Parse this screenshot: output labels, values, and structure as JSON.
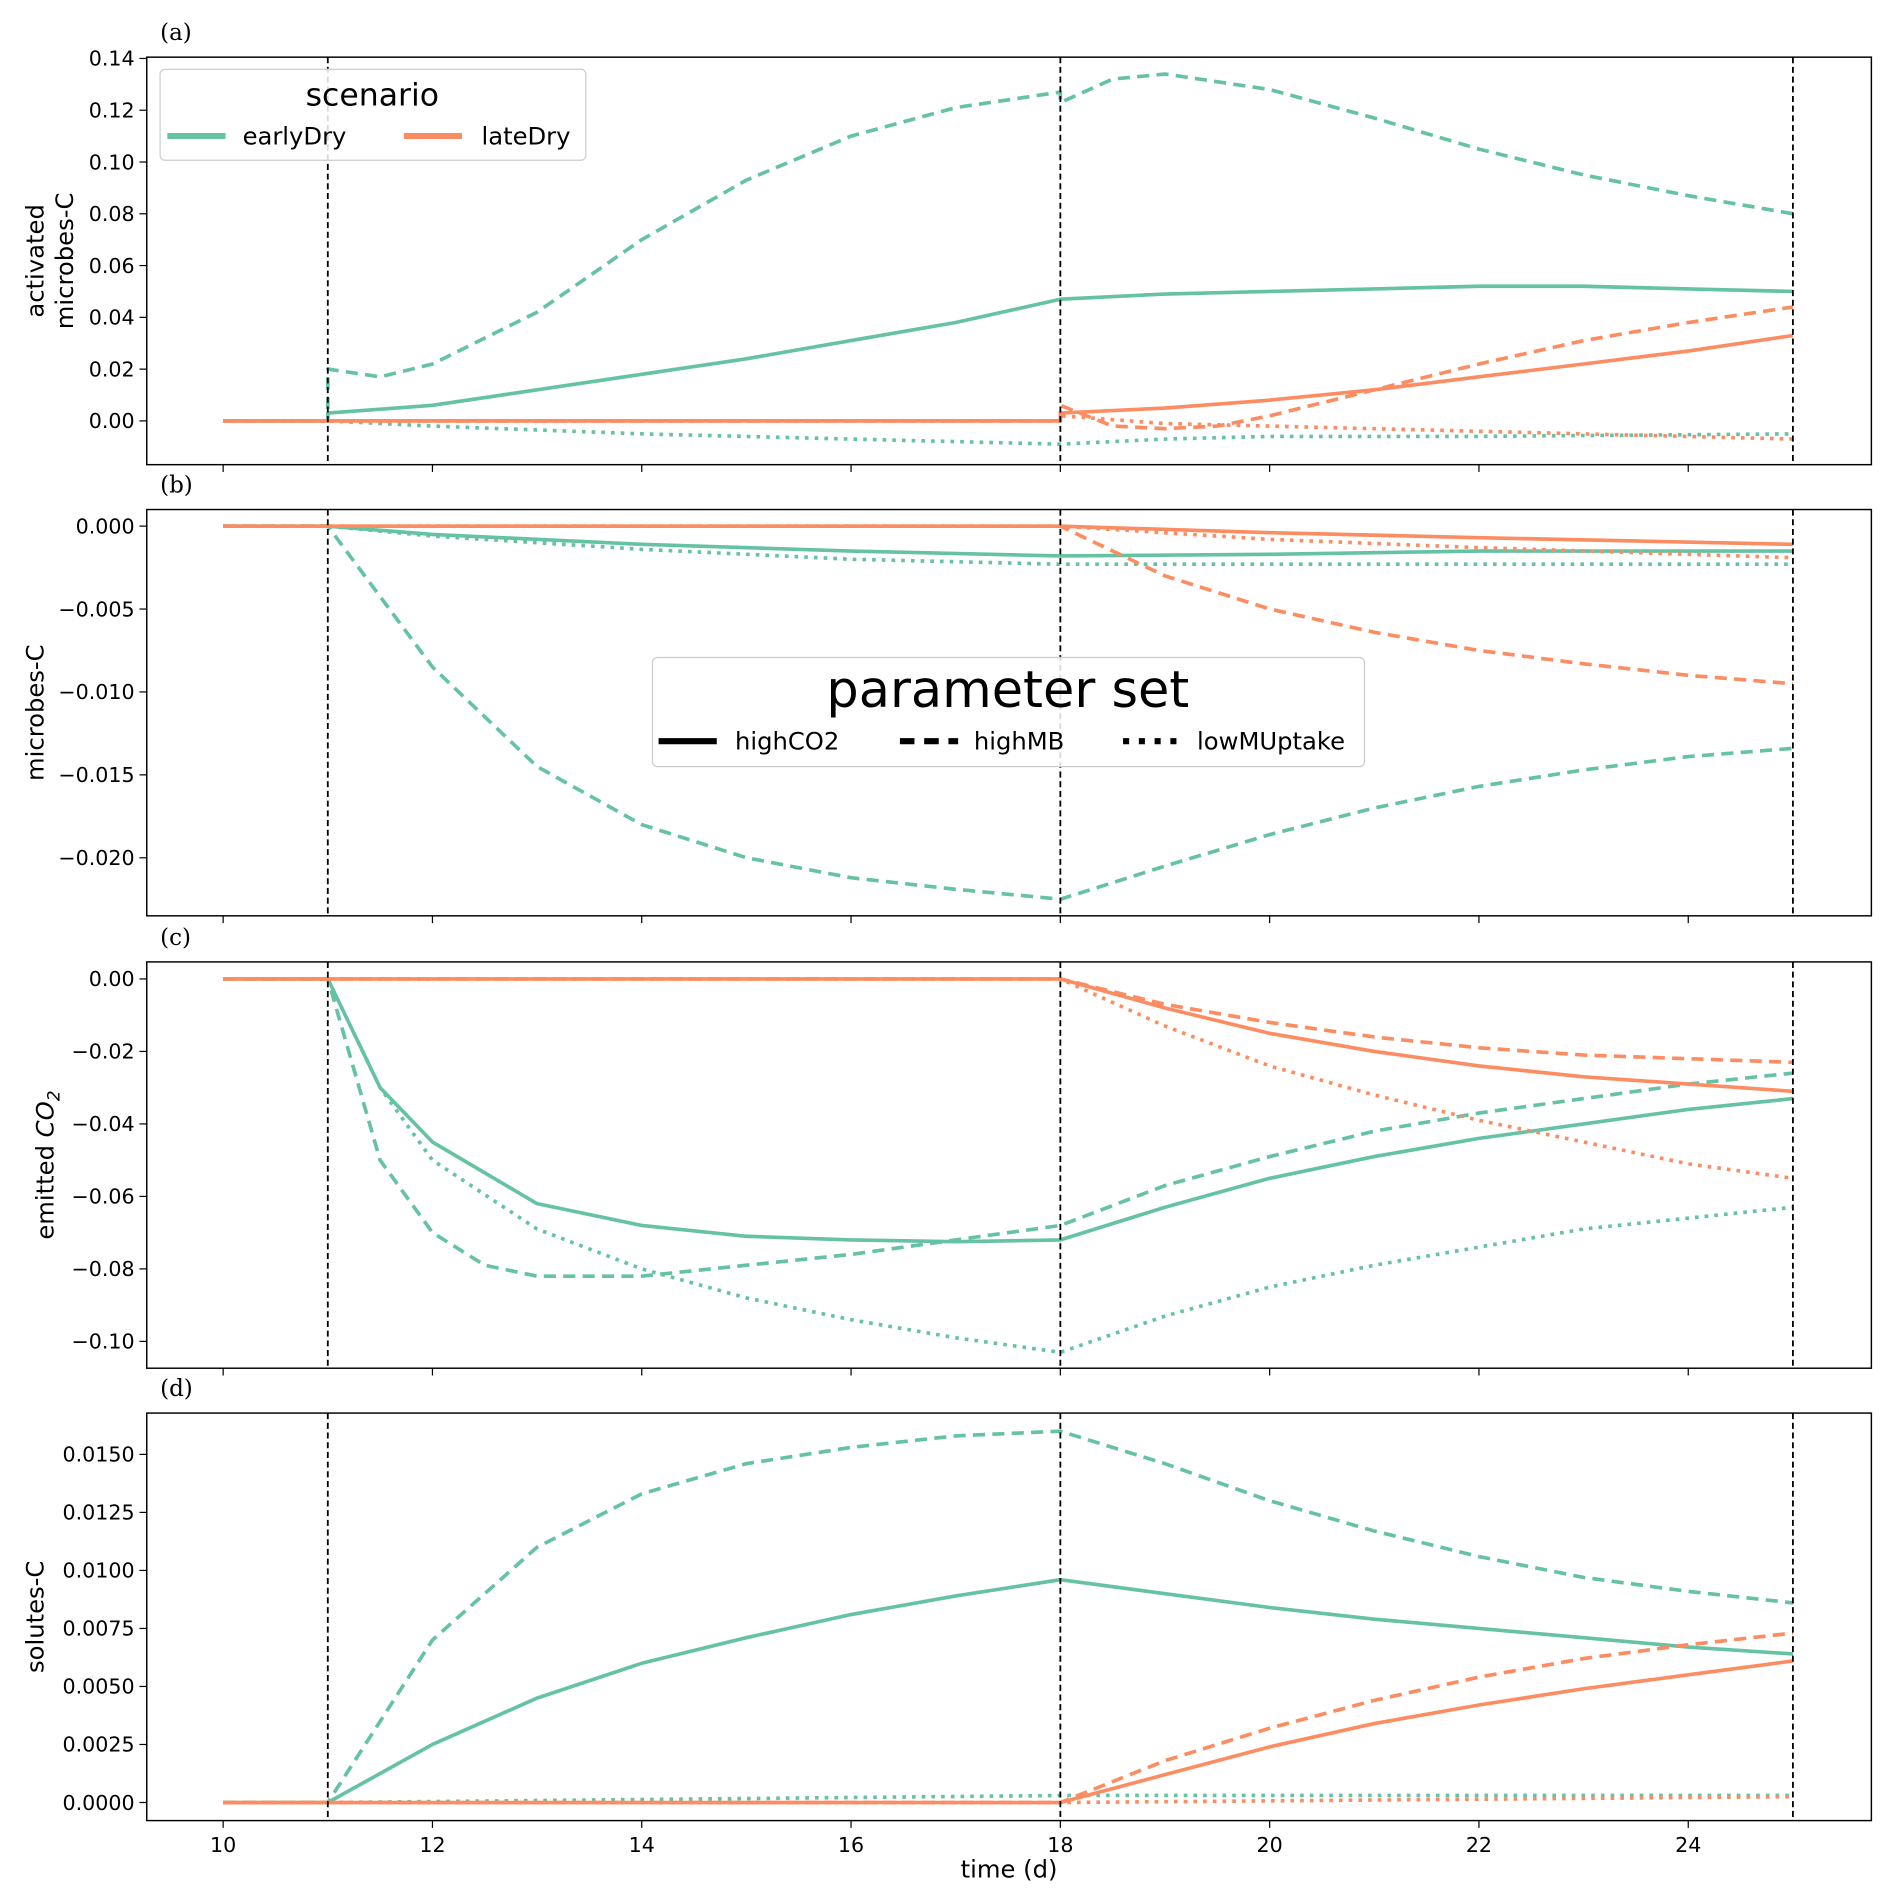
{
  "chart_data": [
    {
      "type": "line",
      "panel": "(a)",
      "ylabel": [
        "activated",
        "microbes-C"
      ],
      "ylim": [
        -0.0169,
        0.1405
      ],
      "yticks": [
        0,
        0.02,
        0.04,
        0.06,
        0.08,
        0.1,
        0.12,
        0.14
      ],
      "ytick_labels": [
        "0.00",
        "0.02",
        "0.04",
        "0.06",
        "0.08",
        "0.10",
        "0.12",
        "0.14"
      ],
      "series": [
        {
          "scenario": "earlyDry",
          "param": "highCO2",
          "x": [
            10,
            11,
            11,
            12,
            13,
            14,
            15,
            16,
            17,
            18,
            19,
            20,
            21,
            22,
            23,
            24,
            25
          ],
          "y": [
            0,
            0,
            0.003,
            0.006,
            0.012,
            0.018,
            0.024,
            0.031,
            0.038,
            0.047,
            0.049,
            0.05,
            0.051,
            0.052,
            0.052,
            0.051,
            0.05
          ]
        },
        {
          "scenario": "earlyDry",
          "param": "highMB",
          "x": [
            10,
            11,
            11,
            11.5,
            12,
            13,
            14,
            15,
            16,
            17,
            18,
            18,
            18.5,
            19,
            20,
            21,
            22,
            23,
            24,
            25
          ],
          "y": [
            0,
            0,
            0.02,
            0.017,
            0.022,
            0.042,
            0.07,
            0.093,
            0.11,
            0.121,
            0.127,
            0.123,
            0.132,
            0.134,
            0.128,
            0.117,
            0.105,
            0.095,
            0.087,
            0.08
          ]
        },
        {
          "scenario": "earlyDry",
          "param": "lowMUptake",
          "x": [
            10,
            11,
            12,
            14,
            16,
            18,
            19,
            20,
            22,
            25
          ],
          "y": [
            0,
            0,
            -0.002,
            -0.005,
            -0.007,
            -0.009,
            -0.007,
            -0.006,
            -0.006,
            -0.005
          ]
        },
        {
          "scenario": "lateDry",
          "param": "highCO2",
          "x": [
            10,
            18,
            18,
            19,
            20,
            21,
            22,
            23,
            24,
            25
          ],
          "y": [
            0,
            0,
            0.003,
            0.005,
            0.008,
            0.012,
            0.017,
            0.022,
            0.027,
            0.033
          ]
        },
        {
          "scenario": "lateDry",
          "param": "highMB",
          "x": [
            10,
            18,
            18,
            18.5,
            19,
            19.5,
            20,
            21,
            22,
            23,
            24,
            25
          ],
          "y": [
            0,
            0,
            0.006,
            -0.002,
            -0.003,
            -0.002,
            0.002,
            0.012,
            0.022,
            0.031,
            0.038,
            0.044
          ]
        },
        {
          "scenario": "lateDry",
          "param": "lowMUptake",
          "x": [
            10,
            18,
            18,
            19,
            20,
            22,
            25
          ],
          "y": [
            0,
            0,
            0.002,
            -0.001,
            -0.002,
            -0.004,
            -0.007
          ]
        }
      ]
    },
    {
      "type": "line",
      "panel": "(b)",
      "ylabel": [
        "microbes-C"
      ],
      "ylim": [
        -0.0235,
        0.001
      ],
      "yticks": [
        0,
        -0.005,
        -0.01,
        -0.015,
        -0.02
      ],
      "ytick_labels": [
        "0.000",
        "−0.005",
        "−0.010",
        "−0.015",
        "−0.020"
      ],
      "series": [
        {
          "scenario": "earlyDry",
          "param": "highCO2",
          "x": [
            10,
            11,
            12,
            14,
            16,
            18,
            20,
            22,
            25
          ],
          "y": [
            0,
            0,
            -0.0005,
            -0.0011,
            -0.0015,
            -0.0018,
            -0.0017,
            -0.0015,
            -0.0015
          ]
        },
        {
          "scenario": "earlyDry",
          "param": "highMB",
          "x": [
            10,
            11,
            12,
            13,
            14,
            15,
            16,
            17,
            18,
            19,
            20,
            21,
            22,
            23,
            24,
            25
          ],
          "y": [
            0,
            0,
            -0.0085,
            -0.0145,
            -0.018,
            -0.02,
            -0.0212,
            -0.0219,
            -0.0225,
            -0.0205,
            -0.0186,
            -0.017,
            -0.0157,
            -0.0147,
            -0.0139,
            -0.0134
          ]
        },
        {
          "scenario": "earlyDry",
          "param": "lowMUptake",
          "x": [
            10,
            11,
            12,
            14,
            16,
            18,
            25
          ],
          "y": [
            0,
            0,
            -0.0006,
            -0.0014,
            -0.002,
            -0.0023,
            -0.0023
          ]
        },
        {
          "scenario": "lateDry",
          "param": "highCO2",
          "x": [
            10,
            18,
            20,
            22,
            25
          ],
          "y": [
            0,
            0,
            -0.0004,
            -0.0007,
            -0.0011
          ]
        },
        {
          "scenario": "lateDry",
          "param": "highMB",
          "x": [
            10,
            18,
            19,
            20,
            21,
            22,
            23,
            24,
            25
          ],
          "y": [
            0,
            0,
            -0.003,
            -0.005,
            -0.0064,
            -0.0075,
            -0.0083,
            -0.009,
            -0.0095
          ]
        },
        {
          "scenario": "lateDry",
          "param": "lowMUptake",
          "x": [
            10,
            18,
            20,
            22,
            25
          ],
          "y": [
            0,
            0,
            -0.0008,
            -0.0013,
            -0.0019
          ]
        }
      ]
    },
    {
      "type": "line",
      "panel": "(c)",
      "ylabel": [
        "emitted CO2"
      ],
      "ylim": [
        -0.1074,
        0.0047
      ],
      "yticks": [
        0,
        -0.02,
        -0.04,
        -0.06,
        -0.08,
        -0.1
      ],
      "ytick_labels": [
        "0.00",
        "−0.02",
        "−0.04",
        "−0.06",
        "−0.08",
        "−0.10"
      ],
      "series": [
        {
          "scenario": "earlyDry",
          "param": "highCO2",
          "x": [
            10,
            11,
            11.5,
            12,
            13,
            14,
            15,
            16,
            17,
            18,
            19,
            20,
            21,
            22,
            23,
            24,
            25
          ],
          "y": [
            0,
            0,
            -0.03,
            -0.045,
            -0.062,
            -0.068,
            -0.071,
            -0.072,
            -0.0725,
            -0.072,
            -0.063,
            -0.055,
            -0.049,
            -0.044,
            -0.04,
            -0.036,
            -0.033
          ]
        },
        {
          "scenario": "earlyDry",
          "param": "highMB",
          "x": [
            10,
            11,
            11.5,
            12,
            12.5,
            13,
            14,
            15,
            16,
            17,
            18,
            19,
            20,
            21,
            22,
            23,
            24,
            25
          ],
          "y": [
            0,
            0,
            -0.05,
            -0.07,
            -0.079,
            -0.082,
            -0.082,
            -0.079,
            -0.076,
            -0.072,
            -0.068,
            -0.057,
            -0.049,
            -0.042,
            -0.037,
            -0.033,
            -0.029,
            -0.026
          ]
        },
        {
          "scenario": "earlyDry",
          "param": "lowMUptake",
          "x": [
            10,
            11,
            11.5,
            12,
            13,
            14,
            15,
            16,
            17,
            18,
            19,
            20,
            21,
            22,
            23,
            24,
            25
          ],
          "y": [
            0,
            0,
            -0.03,
            -0.05,
            -0.069,
            -0.08,
            -0.088,
            -0.094,
            -0.099,
            -0.103,
            -0.093,
            -0.085,
            -0.079,
            -0.074,
            -0.069,
            -0.066,
            -0.063
          ]
        },
        {
          "scenario": "lateDry",
          "param": "highCO2",
          "x": [
            10,
            18,
            19,
            20,
            21,
            22,
            23,
            24,
            25
          ],
          "y": [
            0,
            0,
            -0.008,
            -0.015,
            -0.02,
            -0.024,
            -0.027,
            -0.029,
            -0.031
          ]
        },
        {
          "scenario": "lateDry",
          "param": "highMB",
          "x": [
            10,
            18,
            19,
            20,
            21,
            22,
            23,
            24,
            25
          ],
          "y": [
            0,
            0,
            -0.007,
            -0.012,
            -0.016,
            -0.019,
            -0.021,
            -0.022,
            -0.023
          ]
        },
        {
          "scenario": "lateDry",
          "param": "lowMUptake",
          "x": [
            10,
            18,
            19,
            20,
            21,
            22,
            23,
            24,
            25
          ],
          "y": [
            0,
            0,
            -0.013,
            -0.024,
            -0.032,
            -0.039,
            -0.045,
            -0.051,
            -0.055
          ]
        }
      ]
    },
    {
      "type": "line",
      "panel": "(d)",
      "ylabel": [
        "solutes-C"
      ],
      "ylim": [
        -0.00078,
        0.01678
      ],
      "yticks": [
        0,
        0.0025,
        0.005,
        0.0075,
        0.01,
        0.0125,
        0.015
      ],
      "ytick_labels": [
        "0.0000",
        "0.0025",
        "0.0050",
        "0.0075",
        "0.0100",
        "0.0125",
        "0.0150"
      ],
      "series": [
        {
          "scenario": "earlyDry",
          "param": "highCO2",
          "x": [
            10,
            11,
            12,
            13,
            14,
            15,
            16,
            17,
            18,
            19,
            20,
            21,
            22,
            23,
            24,
            25
          ],
          "y": [
            0,
            0,
            0.0025,
            0.0045,
            0.006,
            0.0071,
            0.0081,
            0.0089,
            0.0096,
            0.009,
            0.0084,
            0.0079,
            0.0075,
            0.0071,
            0.0067,
            0.0064
          ]
        },
        {
          "scenario": "earlyDry",
          "param": "highMB",
          "x": [
            10,
            11,
            12,
            13,
            14,
            15,
            16,
            17,
            18,
            19,
            20,
            21,
            22,
            23,
            24,
            25
          ],
          "y": [
            0,
            0,
            0.007,
            0.011,
            0.0133,
            0.0146,
            0.0153,
            0.0158,
            0.016,
            0.0146,
            0.013,
            0.0117,
            0.0106,
            0.0097,
            0.0091,
            0.0086
          ]
        },
        {
          "scenario": "earlyDry",
          "param": "lowMUptake",
          "x": [
            10,
            11,
            18,
            25
          ],
          "y": [
            0,
            0,
            0.0003,
            0.0003
          ]
        },
        {
          "scenario": "lateDry",
          "param": "highCO2",
          "x": [
            10,
            18,
            19,
            20,
            21,
            22,
            23,
            24,
            25
          ],
          "y": [
            0,
            0,
            0.0012,
            0.0024,
            0.0034,
            0.0042,
            0.0049,
            0.0055,
            0.0061
          ]
        },
        {
          "scenario": "lateDry",
          "param": "highMB",
          "x": [
            10,
            18,
            19,
            20,
            21,
            22,
            23,
            24,
            25
          ],
          "y": [
            0,
            0,
            0.0018,
            0.0032,
            0.0044,
            0.0054,
            0.0062,
            0.0068,
            0.0073
          ]
        },
        {
          "scenario": "lateDry",
          "param": "lowMUptake",
          "x": [
            10,
            18,
            25
          ],
          "y": [
            0,
            0,
            0.00025
          ]
        }
      ]
    }
  ],
  "shared": {
    "xlabel": "time (d)",
    "xlim": [
      9.27,
      25.75
    ],
    "xticks": [
      10,
      12,
      14,
      16,
      18,
      20,
      22,
      24
    ],
    "vlines": [
      11,
      18,
      25
    ],
    "colors": {
      "earlyDry": "#66c2a5",
      "lateDry": "#fc8d62"
    },
    "dashes": {
      "highCO2": "",
      "highMB": "10,6",
      "lowMUptake": "3,5"
    }
  },
  "legend_scenario": {
    "title": "scenario",
    "entries": [
      "earlyDry",
      "lateDry"
    ],
    "placement": "top-left of panel (a)"
  },
  "legend_param": {
    "title": "parameter set",
    "entries": [
      "highCO2",
      "highMB",
      "lowMUptake"
    ],
    "placement": "center of panel (b)"
  }
}
